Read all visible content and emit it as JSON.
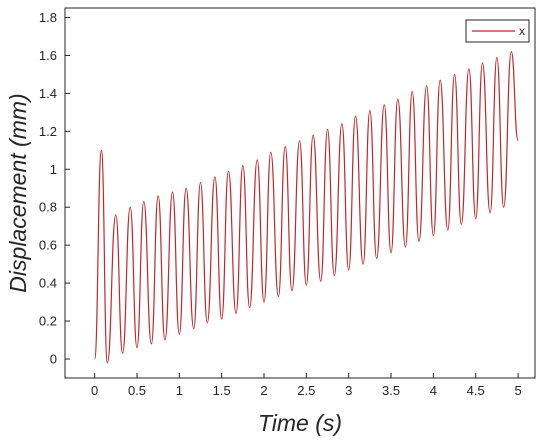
{
  "chart_data": {
    "type": "line",
    "xlabel": "Time (s)",
    "ylabel": "Displacement (mm)",
    "xlim": [
      -0.35,
      5.2
    ],
    "ylim": [
      -0.1,
      1.85
    ],
    "xticks": [
      0,
      0.5,
      1,
      1.5,
      2,
      2.5,
      3,
      3.5,
      4,
      4.5,
      5
    ],
    "xtick_labels": [
      "0",
      "0.5",
      "1",
      "1.5",
      "2",
      "2.5",
      "3",
      "3.5",
      "4",
      "4.5",
      "5"
    ],
    "yticks": [
      0,
      0.2,
      0.4,
      0.6,
      0.8,
      1.0,
      1.2,
      1.4,
      1.6,
      1.8
    ],
    "ytick_labels": [
      "0",
      "0.2",
      "0.4",
      "0.6",
      "0.8",
      "1",
      "1.2",
      "1.4",
      "1.6",
      "1.8"
    ],
    "grid": false,
    "legend_position": "top-right",
    "series": [
      {
        "name": "x",
        "color": "#c0282a",
        "frequency_hz": 6,
        "x": [
          0,
          0.08,
          0.15,
          0.25,
          0.33,
          0.42,
          0.5,
          0.58,
          0.67,
          0.75,
          0.83,
          0.92,
          1.0,
          1.08,
          1.17,
          1.25,
          1.33,
          1.42,
          1.5,
          1.58,
          1.67,
          1.75,
          1.83,
          1.92,
          2.0,
          2.08,
          2.17,
          2.25,
          2.33,
          2.42,
          2.5,
          2.58,
          2.67,
          2.75,
          2.83,
          2.92,
          3.0,
          3.08,
          3.17,
          3.25,
          3.33,
          3.42,
          3.5,
          3.58,
          3.67,
          3.75,
          3.83,
          3.92,
          4.0,
          4.08,
          4.17,
          4.25,
          4.33,
          4.42,
          4.5,
          4.58,
          4.67,
          4.75,
          4.83,
          4.92,
          5.0
        ],
        "y": [
          0.0,
          1.1,
          -0.02,
          0.76,
          0.03,
          0.8,
          0.06,
          0.83,
          0.08,
          0.86,
          0.1,
          0.88,
          0.13,
          0.9,
          0.16,
          0.93,
          0.19,
          0.96,
          0.21,
          0.99,
          0.24,
          1.02,
          0.27,
          1.05,
          0.3,
          1.09,
          0.33,
          1.12,
          0.36,
          1.15,
          0.39,
          1.18,
          0.41,
          1.21,
          0.44,
          1.24,
          0.47,
          1.28,
          0.5,
          1.31,
          0.53,
          1.34,
          0.56,
          1.37,
          0.59,
          1.41,
          0.62,
          1.44,
          0.65,
          1.47,
          0.68,
          1.5,
          0.71,
          1.53,
          0.74,
          1.56,
          0.77,
          1.59,
          0.8,
          1.62,
          1.15
        ]
      }
    ]
  }
}
